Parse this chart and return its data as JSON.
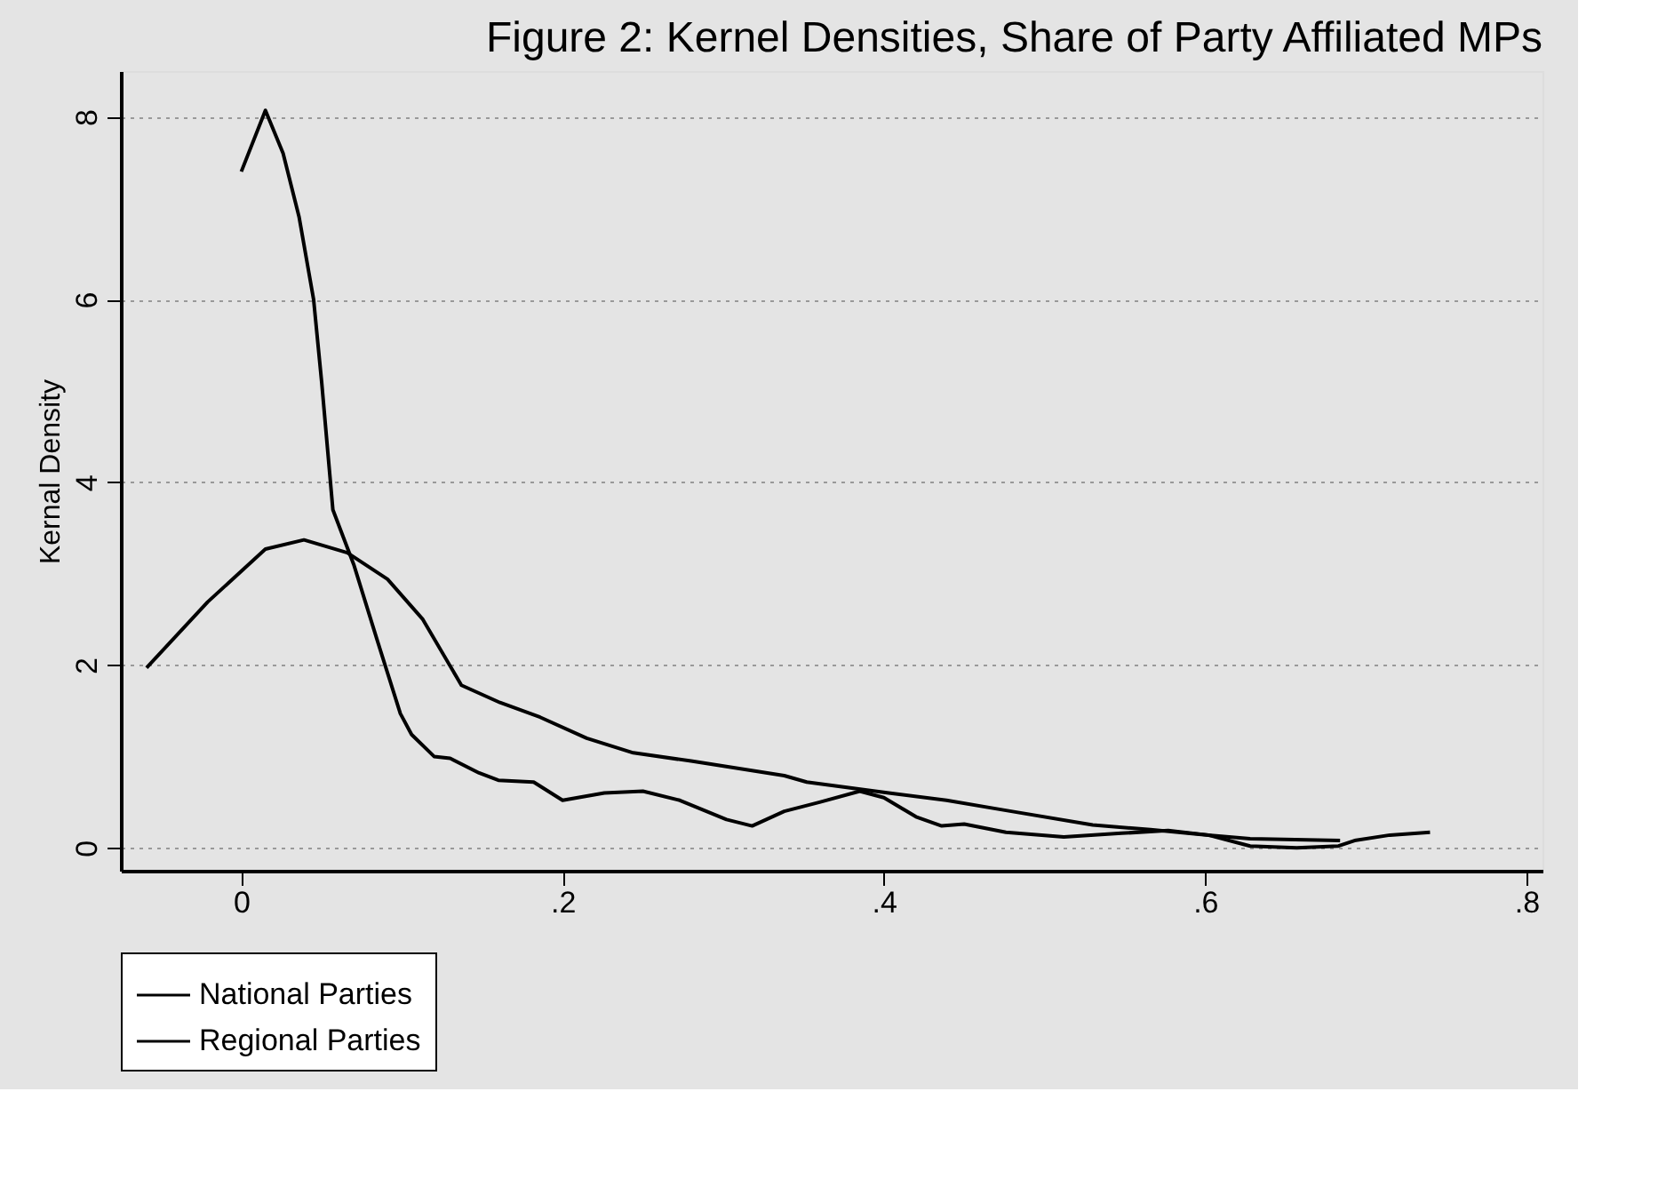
{
  "chart_data": {
    "type": "line",
    "title": "Figure 2: Kernel Densities, Share of Party Affiliated MPs",
    "ylabel": "Kernal Density",
    "xlim": [
      -0.075,
      0.81
    ],
    "ylim": [
      -0.25,
      8.5
    ],
    "xticks": [
      0,
      {
        "value": 0.2,
        "label": ".2"
      },
      {
        "value": 0.4,
        "label": ".4"
      },
      {
        "value": 0.6,
        "label": ".6"
      },
      {
        "value": 0.8,
        "label": ".8"
      }
    ],
    "yticks": [
      0,
      2,
      4,
      6,
      8
    ],
    "grid": "y",
    "legend": "bottom",
    "line_style": "solid",
    "marker": "none",
    "series": [
      {
        "name": "National Parties",
        "color": "#000000",
        "x": [
          -0.059,
          -0.021,
          0.015,
          0.039,
          0.066,
          0.091,
          0.113,
          0.137,
          0.161,
          0.186,
          0.215,
          0.244,
          0.28,
          0.302,
          0.338,
          0.352,
          0.403,
          0.439,
          0.476,
          0.53,
          0.566,
          0.602,
          0.628,
          0.684
        ],
        "values": [
          1.97,
          2.69,
          3.27,
          3.37,
          3.23,
          2.94,
          2.5,
          1.78,
          1.59,
          1.43,
          1.2,
          1.04,
          0.95,
          0.89,
          0.79,
          0.72,
          0.6,
          0.52,
          0.41,
          0.25,
          0.2,
          0.14,
          0.1,
          0.08
        ]
      },
      {
        "name": "Regional Parties",
        "color": "#000000",
        "x": [
          0,
          0.015,
          0.026,
          0.036,
          0.045,
          0.05,
          0.057,
          0.07,
          0.085,
          0.099,
          0.106,
          0.12,
          0.13,
          0.148,
          0.16,
          0.182,
          0.2,
          0.226,
          0.25,
          0.273,
          0.302,
          0.318,
          0.338,
          0.36,
          0.385,
          0.4,
          0.42,
          0.436,
          0.45,
          0.476,
          0.512,
          0.548,
          0.577,
          0.602,
          0.628,
          0.657,
          0.683,
          0.693,
          0.715,
          0.74
        ],
        "values": [
          7.4,
          8.07,
          7.6,
          6.9,
          6.0,
          5.1,
          3.7,
          3.1,
          2.25,
          1.47,
          1.24,
          1.0,
          0.98,
          0.82,
          0.74,
          0.72,
          0.52,
          0.6,
          0.62,
          0.52,
          0.31,
          0.24,
          0.4,
          0.5,
          0.62,
          0.55,
          0.34,
          0.24,
          0.26,
          0.17,
          0.12,
          0.16,
          0.19,
          0.14,
          0.02,
          0.0,
          0.02,
          0.08,
          0.14,
          0.17
        ]
      }
    ]
  }
}
